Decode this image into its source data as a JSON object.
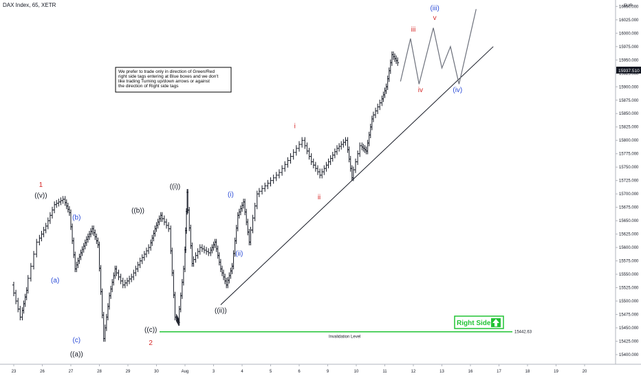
{
  "header": {
    "title": "DAX Index, 65, XETR"
  },
  "currency": "EUR",
  "current_price": "15937.510",
  "note_lines": [
    "We prefer to trade only in direction of Green/Red",
    "right side tags entering at Blue boxes and we don't",
    "like trading Turning up/down arrows or against",
    "the direction of Right side tags"
  ],
  "right_side": {
    "label": "Right Side"
  },
  "invalidation": {
    "label": "Invalidation Level",
    "value": "15442.63",
    "price": 15442.63
  },
  "chart_data": {
    "type": "line",
    "x_ticks": [
      "23",
      "26",
      "27",
      "28",
      "29",
      "30",
      "Aug",
      "3",
      "4",
      "5",
      "6",
      "9",
      "10",
      "11",
      "12",
      "13",
      "16",
      "17",
      "18",
      "19",
      "20"
    ],
    "y_ticks": [
      15400,
      15425,
      15450,
      15475,
      15500,
      15525,
      15550,
      15575,
      15600,
      15625,
      15650,
      15675,
      15700,
      15725,
      15750,
      15775,
      15800,
      15825,
      15850,
      15875,
      15900,
      15925,
      15950,
      15975,
      16000,
      16025,
      16050
    ],
    "y_tick_labels": [
      "15400.000",
      "15425.000",
      "15450.000",
      "15475.000",
      "15500.000",
      "15525.000",
      "15550.000",
      "15575.000",
      "15600.000",
      "15625.000",
      "15650.000",
      "15675.000",
      "15700.000",
      "15725.000",
      "15750.000",
      "15775.000",
      "15800.000",
      "15825.000",
      "15850.000",
      "15875.000",
      "15900.000",
      "15925.000",
      "15950.000",
      "15975.000",
      "16000.000",
      "16025.000",
      "16050.000"
    ],
    "ylim": [
      15382,
      16062
    ],
    "price_path": [
      {
        "x": 0.0,
        "y": 15530
      },
      {
        "x": 0.3,
        "y": 15470
      },
      {
        "x": 0.5,
        "y": 15520
      },
      {
        "x": 0.9,
        "y": 15610
      },
      {
        "x": 1.2,
        "y": 15640
      },
      {
        "x": 1.5,
        "y": 15680
      },
      {
        "x": 1.8,
        "y": 15690
      },
      {
        "x": 2.0,
        "y": 15665
      },
      {
        "x": 2.2,
        "y": 15560
      },
      {
        "x": 2.4,
        "y": 15590
      },
      {
        "x": 2.6,
        "y": 15615
      },
      {
        "x": 2.8,
        "y": 15635
      },
      {
        "x": 3.0,
        "y": 15605
      },
      {
        "x": 3.2,
        "y": 15430
      },
      {
        "x": 3.4,
        "y": 15510
      },
      {
        "x": 3.6,
        "y": 15560
      },
      {
        "x": 3.9,
        "y": 15530
      },
      {
        "x": 4.2,
        "y": 15545
      },
      {
        "x": 4.5,
        "y": 15575
      },
      {
        "x": 4.8,
        "y": 15600
      },
      {
        "x": 5.0,
        "y": 15635
      },
      {
        "x": 5.2,
        "y": 15660
      },
      {
        "x": 5.5,
        "y": 15635
      },
      {
        "x": 5.7,
        "y": 15470
      },
      {
        "x": 5.8,
        "y": 15460
      },
      {
        "x": 6.0,
        "y": 15560
      },
      {
        "x": 6.1,
        "y": 15703
      },
      {
        "x": 6.3,
        "y": 15570
      },
      {
        "x": 6.6,
        "y": 15600
      },
      {
        "x": 6.9,
        "y": 15590
      },
      {
        "x": 7.1,
        "y": 15610
      },
      {
        "x": 7.3,
        "y": 15560
      },
      {
        "x": 7.5,
        "y": 15530
      },
      {
        "x": 7.7,
        "y": 15565
      },
      {
        "x": 7.9,
        "y": 15660
      },
      {
        "x": 8.1,
        "y": 15685
      },
      {
        "x": 8.3,
        "y": 15610
      },
      {
        "x": 8.6,
        "y": 15700
      },
      {
        "x": 9.0,
        "y": 15720
      },
      {
        "x": 9.4,
        "y": 15740
      },
      {
        "x": 9.8,
        "y": 15770
      },
      {
        "x": 10.2,
        "y": 15800
      },
      {
        "x": 10.5,
        "y": 15760
      },
      {
        "x": 10.8,
        "y": 15735
      },
      {
        "x": 11.1,
        "y": 15760
      },
      {
        "x": 11.4,
        "y": 15785
      },
      {
        "x": 11.7,
        "y": 15800
      },
      {
        "x": 11.9,
        "y": 15730
      },
      {
        "x": 12.2,
        "y": 15790
      },
      {
        "x": 12.4,
        "y": 15780
      },
      {
        "x": 12.6,
        "y": 15840
      },
      {
        "x": 12.9,
        "y": 15870
      },
      {
        "x": 13.1,
        "y": 15900
      },
      {
        "x": 13.3,
        "y": 15960
      },
      {
        "x": 13.5,
        "y": 15945
      }
    ],
    "projection_path": [
      {
        "x": 13.55,
        "y": 15910
      },
      {
        "x": 13.9,
        "y": 15990
      },
      {
        "x": 14.2,
        "y": 15905
      },
      {
        "x": 14.7,
        "y": 16010
      },
      {
        "x": 15.0,
        "y": 15935
      },
      {
        "x": 15.3,
        "y": 15975
      },
      {
        "x": 15.6,
        "y": 15905
      },
      {
        "x": 16.2,
        "y": 16045
      }
    ],
    "trendline": [
      {
        "x": 7.25,
        "y": 15493
      },
      {
        "x": 16.8,
        "y": 15975
      }
    ],
    "waves": [
      {
        "text": "1",
        "x": 0.95,
        "y": 15713,
        "color": "#d62828"
      },
      {
        "text": "((v))",
        "x": 0.95,
        "y": 15693,
        "color": "#131722"
      },
      {
        "text": "(a)",
        "x": 1.45,
        "y": 15535,
        "color": "#2a4bd7"
      },
      {
        "text": "(b)",
        "x": 2.2,
        "y": 15652,
        "color": "#2a4bd7"
      },
      {
        "text": "(c)",
        "x": 2.2,
        "y": 15423,
        "color": "#2a4bd7"
      },
      {
        "text": "((a))",
        "x": 2.2,
        "y": 15397,
        "color": "#131722"
      },
      {
        "text": "((b))",
        "x": 4.35,
        "y": 15665,
        "color": "#131722"
      },
      {
        "text": "((c))",
        "x": 4.8,
        "y": 15442,
        "color": "#131722"
      },
      {
        "text": "2",
        "x": 4.8,
        "y": 15418,
        "color": "#d62828"
      },
      {
        "text": "((i))",
        "x": 5.65,
        "y": 15710,
        "color": "#131722"
      },
      {
        "text": "(i)",
        "x": 7.6,
        "y": 15695,
        "color": "#2a4bd7"
      },
      {
        "text": "(ii)",
        "x": 7.9,
        "y": 15585,
        "color": "#2a4bd7"
      },
      {
        "text": "((ii))",
        "x": 7.25,
        "y": 15478,
        "color": "#131722"
      },
      {
        "text": "i",
        "x": 9.85,
        "y": 15823,
        "color": "#d62828"
      },
      {
        "text": "ii",
        "x": 10.7,
        "y": 15690,
        "color": "#d62828"
      },
      {
        "text": "iii",
        "x": 14.0,
        "y": 16003,
        "color": "#d62828"
      },
      {
        "text": "iv",
        "x": 14.25,
        "y": 15890,
        "color": "#d62828"
      },
      {
        "text": "v",
        "x": 14.75,
        "y": 16025,
        "color": "#d62828"
      },
      {
        "text": "(iii)",
        "x": 14.75,
        "y": 16043,
        "color": "#2a4bd7"
      },
      {
        "text": "(iv)",
        "x": 15.55,
        "y": 15890,
        "color": "#2a4bd7"
      }
    ]
  }
}
